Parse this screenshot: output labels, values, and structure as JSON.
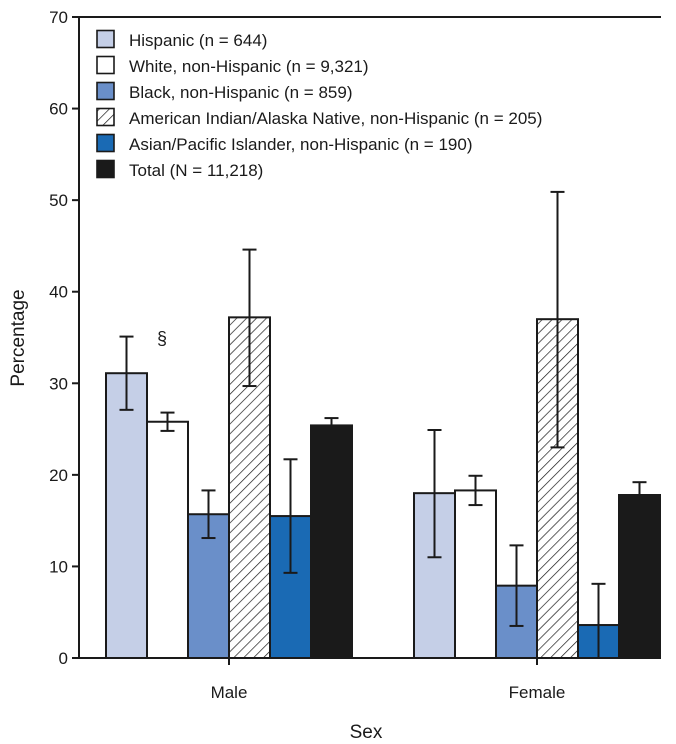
{
  "chart_data": {
    "type": "bar",
    "title": "",
    "xlabel": "Sex",
    "ylabel": "Percentage",
    "ylim": [
      0,
      70
    ],
    "yticks": [
      0,
      10,
      20,
      30,
      40,
      50,
      60,
      70
    ],
    "grid": false,
    "legend_position": "top-left",
    "categories": [
      "Male",
      "Female"
    ],
    "series": [
      {
        "name": "Hispanic (n = 644)",
        "values": [
          31.1,
          18.0
        ],
        "ci_low": [
          27.1,
          11.0
        ],
        "ci_high": [
          35.1,
          24.9
        ],
        "color": "#c5cfe7",
        "pattern": "solid"
      },
      {
        "name": "White, non-Hispanic (n = 9,321)",
        "values": [
          25.8,
          18.3
        ],
        "ci_low": [
          24.8,
          16.7
        ],
        "ci_high": [
          26.8,
          19.9
        ],
        "color": "#ffffff",
        "pattern": "solid"
      },
      {
        "name": "Black, non-Hispanic (n = 859)",
        "values": [
          15.7,
          7.9
        ],
        "ci_low": [
          13.1,
          3.5
        ],
        "ci_high": [
          18.3,
          12.3
        ],
        "color": "#6a8fc9",
        "pattern": "solid"
      },
      {
        "name": "American Indian/Alaska Native, non-Hispanic (n = 205)",
        "values": [
          37.2,
          37.0
        ],
        "ci_low": [
          29.7,
          23.0
        ],
        "ci_high": [
          44.6,
          50.9
        ],
        "color": "#ffffff",
        "pattern": "hatch"
      },
      {
        "name": "Asian/Pacific Islander, non-Hispanic (n = 190)",
        "values": [
          15.5,
          3.6
        ],
        "ci_low": [
          9.3,
          0.0
        ],
        "ci_high": [
          21.7,
          8.1
        ],
        "color": "#1a6ab4",
        "pattern": "solid"
      },
      {
        "name": "Total (N = 11,218)",
        "values": [
          25.4,
          17.8
        ],
        "ci_low": [
          24.6,
          16.4
        ],
        "ci_high": [
          26.2,
          19.2
        ],
        "color": "#1a1a1a",
        "pattern": "solid"
      }
    ],
    "annotations": [
      {
        "text": "§",
        "category": "Male",
        "series_index": 0
      }
    ]
  }
}
